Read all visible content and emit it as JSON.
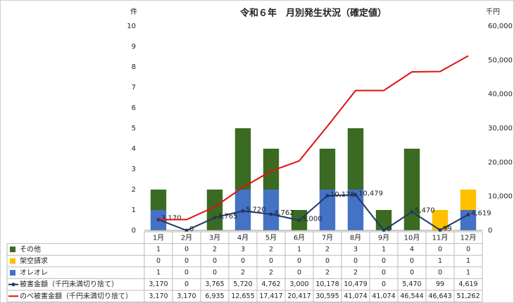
{
  "chart_data": {
    "type": "bar",
    "title": "令和６年　月別発生状況（確定値）",
    "y_label": "件",
    "y2_label": "千円",
    "categories": [
      "1月",
      "2月",
      "3月",
      "4月",
      "5月",
      "6月",
      "7月",
      "8月",
      "9月",
      "10月",
      "11月",
      "12月"
    ],
    "ylim": [
      0,
      10
    ],
    "yticks": [
      0,
      1,
      2,
      3,
      4,
      5,
      6,
      7,
      8,
      9,
      10
    ],
    "y2lim": [
      0,
      60000
    ],
    "y2ticks": [
      0,
      {
        "value": 10000,
        "label": "10,000"
      },
      {
        "value": 20000,
        "label": "20,000"
      },
      {
        "value": 30000,
        "label": "30,000"
      },
      {
        "value": 40000,
        "label": "40,000"
      },
      {
        "value": 50000,
        "label": "50,000"
      },
      {
        "value": 60000,
        "label": "60,000"
      }
    ],
    "stacked": true,
    "series": [
      {
        "name": "その他",
        "type": "bar",
        "color": "#3b6b22",
        "values": [
          1,
          0,
          2,
          3,
          2,
          1,
          2,
          3,
          1,
          4,
          0,
          0
        ]
      },
      {
        "name": "架空請求",
        "type": "bar",
        "color": "#ffc000",
        "values": [
          0,
          0,
          0,
          0,
          0,
          0,
          0,
          0,
          0,
          0,
          1,
          1
        ]
      },
      {
        "name": "オレオレ",
        "type": "bar",
        "color": "#4472c4",
        "values": [
          1,
          0,
          0,
          2,
          2,
          0,
          2,
          2,
          0,
          0,
          0,
          1
        ]
      },
      {
        "name": "被害金額（千円未満切り捨て）",
        "type": "line",
        "axis": "y2",
        "color": "#1f3864",
        "markers": true,
        "values": [
          3170,
          0,
          3765,
          5720,
          4762,
          3000,
          10178,
          10479,
          0,
          5470,
          99,
          4619
        ],
        "value_labels": [
          "3,170",
          "0",
          "3,765",
          "5,720",
          "4,762",
          "3,000",
          "10,178",
          "10,479",
          "0",
          "5,470",
          "99",
          "4,619"
        ]
      },
      {
        "name": "のべ被害金額（千円未満切り捨て）",
        "type": "line",
        "axis": "y2",
        "color": "#e01010",
        "markers": false,
        "values": [
          3170,
          3170,
          6935,
          12655,
          17417,
          20417,
          30595,
          41074,
          41074,
          46544,
          46643,
          51262
        ],
        "value_labels": [
          "3,170",
          "3,170",
          "6,935",
          "12,655",
          "17,417",
          "20,417",
          "30,595",
          "41,074",
          "41,074",
          "46,544",
          "46,643",
          "51,262"
        ]
      }
    ]
  }
}
